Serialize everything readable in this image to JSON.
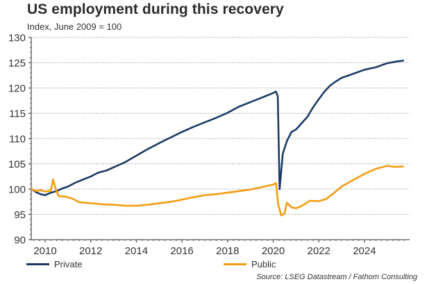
{
  "chart_data": {
    "type": "line",
    "title": "US employment during this recovery",
    "subtitle": "Index, June 2009 = 100",
    "xlabel": "",
    "ylabel": "",
    "xlim": [
      2009.4,
      2025.75
    ],
    "ylim": [
      90,
      130
    ],
    "y_ticks": [
      90,
      95,
      100,
      105,
      110,
      115,
      120,
      125,
      130
    ],
    "x_ticks": [
      2010,
      2012,
      2014,
      2016,
      2018,
      2020,
      2022,
      2024
    ],
    "x_tick_labels": [
      "2010",
      "2012",
      "2014",
      "2016",
      "2018",
      "2020",
      "2022",
      "2024"
    ],
    "grid": "horizontal dotted",
    "legend_position": "bottom",
    "series": [
      {
        "name": "Private",
        "color": "#1b3a63",
        "points": [
          [
            2009.42,
            100.0
          ],
          [
            2009.6,
            99.4
          ],
          [
            2009.8,
            99.0
          ],
          [
            2010.0,
            98.8
          ],
          [
            2010.2,
            99.2
          ],
          [
            2010.5,
            99.6
          ],
          [
            2010.8,
            100.2
          ],
          [
            2011.0,
            100.5
          ],
          [
            2011.3,
            101.2
          ],
          [
            2011.6,
            101.8
          ],
          [
            2012.0,
            102.5
          ],
          [
            2012.3,
            103.2
          ],
          [
            2012.7,
            103.7
          ],
          [
            2013.0,
            104.3
          ],
          [
            2013.5,
            105.3
          ],
          [
            2014.0,
            106.6
          ],
          [
            2014.5,
            107.9
          ],
          [
            2015.0,
            109.1
          ],
          [
            2015.5,
            110.2
          ],
          [
            2016.0,
            111.3
          ],
          [
            2016.5,
            112.3
          ],
          [
            2017.0,
            113.2
          ],
          [
            2017.5,
            114.1
          ],
          [
            2018.0,
            115.1
          ],
          [
            2018.5,
            116.3
          ],
          [
            2019.0,
            117.2
          ],
          [
            2019.5,
            118.1
          ],
          [
            2020.0,
            119.0
          ],
          [
            2020.12,
            119.3
          ],
          [
            2020.2,
            118.3
          ],
          [
            2020.28,
            100.0
          ],
          [
            2020.42,
            107.0
          ],
          [
            2020.6,
            109.5
          ],
          [
            2020.8,
            111.3
          ],
          [
            2021.0,
            111.8
          ],
          [
            2021.2,
            112.8
          ],
          [
            2021.5,
            114.3
          ],
          [
            2021.75,
            116.2
          ],
          [
            2022.0,
            117.8
          ],
          [
            2022.25,
            119.3
          ],
          [
            2022.5,
            120.5
          ],
          [
            2022.75,
            121.3
          ],
          [
            2023.0,
            122.0
          ],
          [
            2023.5,
            122.8
          ],
          [
            2024.0,
            123.6
          ],
          [
            2024.5,
            124.1
          ],
          [
            2025.0,
            124.9
          ],
          [
            2025.5,
            125.3
          ],
          [
            2025.7,
            125.4
          ]
        ]
      },
      {
        "name": "Public",
        "color": "#f39c12",
        "points": [
          [
            2009.42,
            100.0
          ],
          [
            2009.6,
            99.6
          ],
          [
            2009.8,
            99.8
          ],
          [
            2010.0,
            99.5
          ],
          [
            2010.25,
            99.7
          ],
          [
            2010.35,
            101.9
          ],
          [
            2010.45,
            100.2
          ],
          [
            2010.6,
            98.6
          ],
          [
            2010.9,
            98.5
          ],
          [
            2011.2,
            98.1
          ],
          [
            2011.5,
            97.4
          ],
          [
            2012.0,
            97.2
          ],
          [
            2012.5,
            97.0
          ],
          [
            2013.0,
            96.9
          ],
          [
            2013.5,
            96.7
          ],
          [
            2014.0,
            96.7
          ],
          [
            2014.5,
            96.9
          ],
          [
            2015.0,
            97.2
          ],
          [
            2015.5,
            97.5
          ],
          [
            2016.0,
            97.9
          ],
          [
            2016.5,
            98.4
          ],
          [
            2017.0,
            98.8
          ],
          [
            2017.5,
            99.0
          ],
          [
            2018.0,
            99.3
          ],
          [
            2018.5,
            99.6
          ],
          [
            2019.0,
            99.9
          ],
          [
            2019.5,
            100.4
          ],
          [
            2020.0,
            100.9
          ],
          [
            2020.12,
            101.2
          ],
          [
            2020.22,
            97.0
          ],
          [
            2020.35,
            94.8
          ],
          [
            2020.5,
            95.2
          ],
          [
            2020.6,
            97.3
          ],
          [
            2020.8,
            96.4
          ],
          [
            2021.0,
            96.2
          ],
          [
            2021.3,
            96.8
          ],
          [
            2021.6,
            97.7
          ],
          [
            2022.0,
            97.6
          ],
          [
            2022.3,
            98.0
          ],
          [
            2022.6,
            99.0
          ],
          [
            2023.0,
            100.5
          ],
          [
            2023.5,
            101.8
          ],
          [
            2024.0,
            103.0
          ],
          [
            2024.5,
            104.0
          ],
          [
            2025.0,
            104.6
          ],
          [
            2025.3,
            104.4
          ],
          [
            2025.7,
            104.5
          ]
        ]
      }
    ],
    "source": "Source: LSEG Datastream / Fathom Consulting"
  },
  "legend": {
    "private_label": "Private",
    "public_label": "Public"
  }
}
